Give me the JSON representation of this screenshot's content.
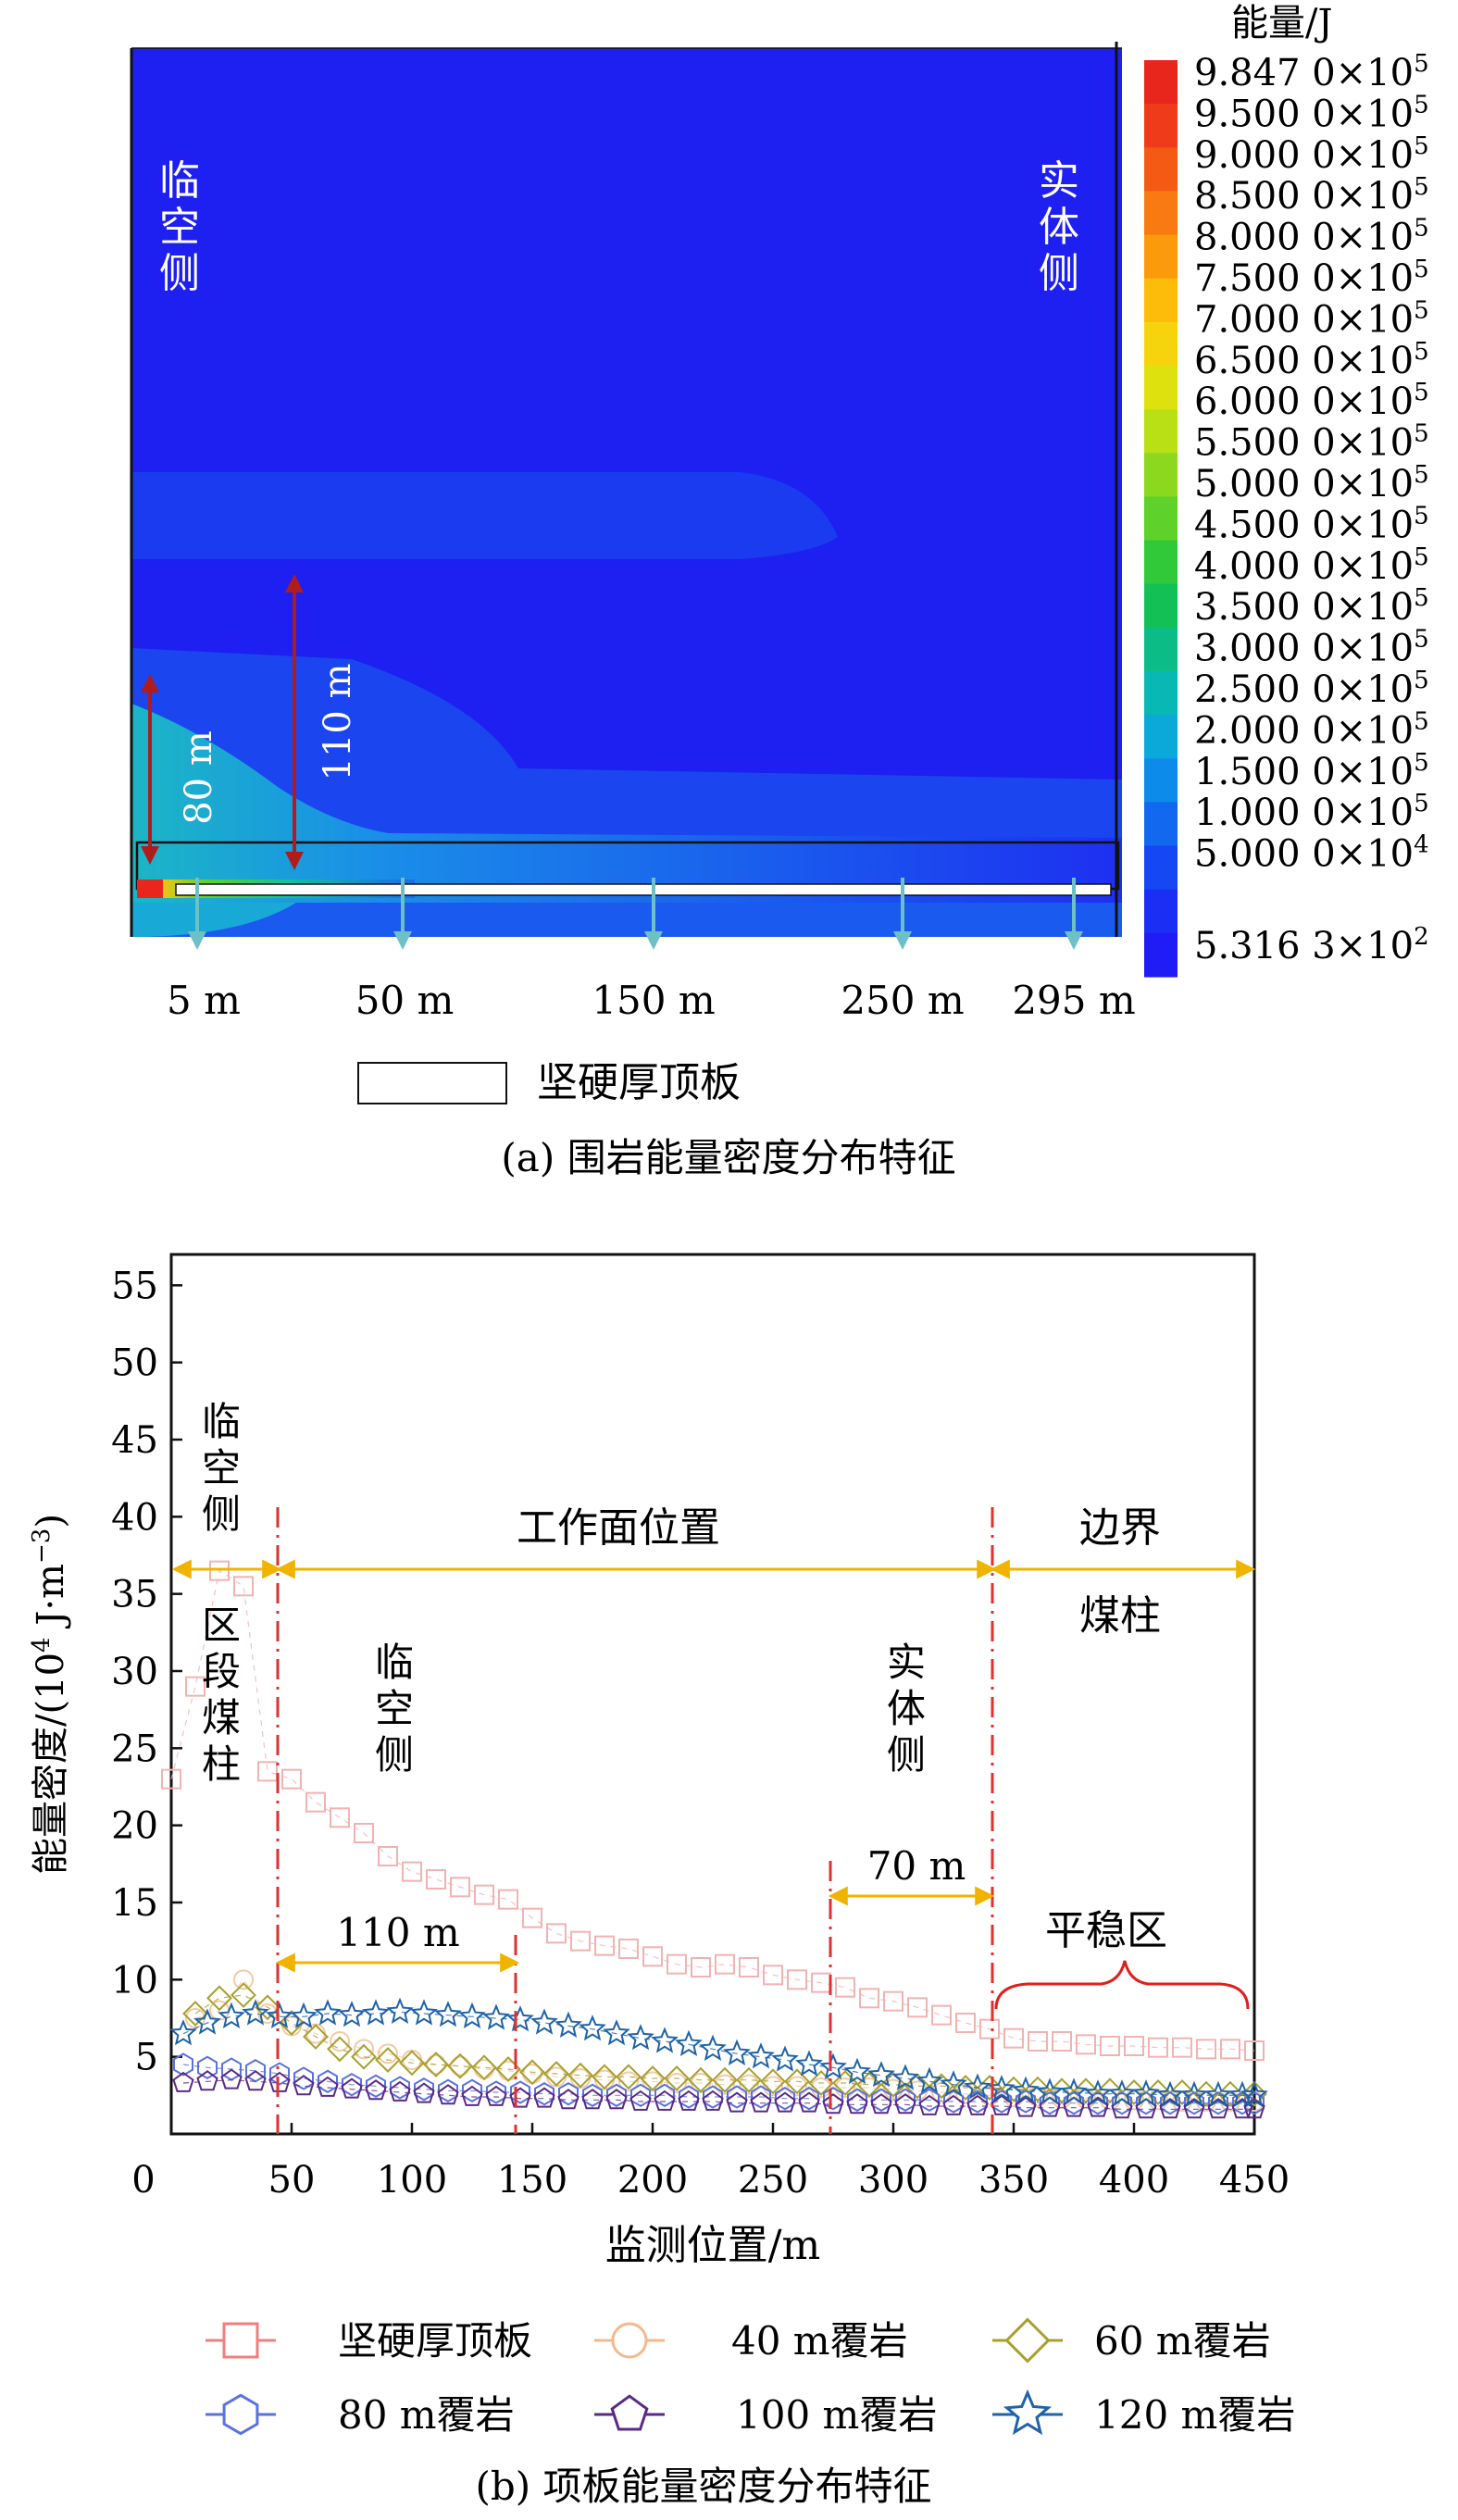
{
  "panel_a": {
    "caption": "(a) 围岩能量密度分布特征",
    "colorbar_title": "能量/J",
    "colorbar_labels": [
      {
        "mantissa": "9.847 0",
        "exp": "5"
      },
      {
        "mantissa": "9.500 0",
        "exp": "5"
      },
      {
        "mantissa": "9.000 0",
        "exp": "5"
      },
      {
        "mantissa": "8.500 0",
        "exp": "5"
      },
      {
        "mantissa": "8.000 0",
        "exp": "5"
      },
      {
        "mantissa": "7.500 0",
        "exp": "5"
      },
      {
        "mantissa": "7.000 0",
        "exp": "5"
      },
      {
        "mantissa": "6.500 0",
        "exp": "5"
      },
      {
        "mantissa": "6.000 0",
        "exp": "5"
      },
      {
        "mantissa": "5.500 0",
        "exp": "5"
      },
      {
        "mantissa": "5.000 0",
        "exp": "5"
      },
      {
        "mantissa": "4.500 0",
        "exp": "5"
      },
      {
        "mantissa": "4.000 0",
        "exp": "5"
      },
      {
        "mantissa": "3.500 0",
        "exp": "5"
      },
      {
        "mantissa": "3.000 0",
        "exp": "5"
      },
      {
        "mantissa": "2.500 0",
        "exp": "5"
      },
      {
        "mantissa": "2.000 0",
        "exp": "5"
      },
      {
        "mantissa": "1.500 0",
        "exp": "5"
      },
      {
        "mantissa": "1.000 0",
        "exp": "5"
      },
      {
        "mantissa": "5.000 0",
        "exp": "4"
      },
      {
        "mantissa": "5.316 3",
        "exp": "2"
      }
    ],
    "colorbar_colors": [
      "#e8261c",
      "#ef3b1a",
      "#f45a14",
      "#f87a10",
      "#fb9b0c",
      "#fdbb0a",
      "#f5d40d",
      "#dfe10f",
      "#b8e015",
      "#8cd81e",
      "#5ed12a",
      "#31c83a",
      "#12c055",
      "#0cbc86",
      "#08b8b4",
      "#0aa9da",
      "#0d8bea",
      "#1269ef",
      "#1548f2",
      "#1a2ef4",
      "#1f1cf5"
    ],
    "field_bg": "#1e1ff1",
    "left_label": "临空侧",
    "right_label": "实体侧",
    "arrow_80": "80 m",
    "arrow_110": "110 m",
    "bottom_positions": [
      "5 m",
      "50 m",
      "150 m",
      "250 m",
      "295 m"
    ],
    "legend_label": "坚硬厚顶板"
  },
  "panel_b": {
    "caption": "(b) 项板能量密度分布特征",
    "xlabel": "监测位置/m",
    "ylabel_main": "能量密度/(10",
    "ylabel_exp": "4",
    "ylabel_tail": " J·m",
    "ylabel_exp2": "−3",
    "ylabel_close": ")",
    "x_ticks": [
      "0",
      "50",
      "100",
      "150",
      "200",
      "250",
      "300",
      "350",
      "400",
      "450"
    ],
    "y_ticks": [
      "5",
      "10",
      "15",
      "20",
      "25",
      "30",
      "35",
      "40",
      "45",
      "50",
      "55"
    ],
    "annotations": {
      "lin_kong_ce_top": "临空侧",
      "qu_duan_mei_zhu": "区段煤柱",
      "gong_zuo_mian": "工作面位置",
      "bian_jie": "边界",
      "mei_zhu": "煤柱",
      "lin_kong_ce_mid": "临空侧",
      "shi_ti_ce": "实体侧",
      "d110": "110 m",
      "d70": "70 m",
      "ping_wen_qu": "平稳区"
    },
    "legend": [
      {
        "label": "坚硬厚顶板",
        "color": "#ef7f7f",
        "marker": "square"
      },
      {
        "label": "40 m覆岩",
        "color": "#f4b88c",
        "marker": "circle"
      },
      {
        "label": "60 m覆岩",
        "color": "#a8a02c",
        "marker": "diamond"
      },
      {
        "label": "80 m覆岩",
        "color": "#5a72e0",
        "marker": "hexagon"
      },
      {
        "label": "100 m覆岩",
        "color": "#5a2a86",
        "marker": "pentagon"
      },
      {
        "label": "120 m覆岩",
        "color": "#1f63a8",
        "marker": "star"
      }
    ]
  },
  "chart_data": {
    "type": "scatter",
    "xlabel": "监测位置/m",
    "ylabel": "能量密度/(10^4 J·m^-3)",
    "xlim": [
      0,
      450
    ],
    "ylim": [
      0,
      57
    ],
    "grid": false,
    "legend_position": "bottom",
    "series": [
      {
        "name": "坚硬厚顶板",
        "x": [
          0,
          10,
          20,
          30,
          40,
          50,
          60,
          70,
          80,
          90,
          100,
          110,
          120,
          130,
          140,
          150,
          160,
          170,
          180,
          190,
          200,
          210,
          220,
          230,
          240,
          250,
          260,
          270,
          280,
          290,
          300,
          310,
          320,
          330,
          340,
          350,
          360,
          370,
          380,
          390,
          400,
          410,
          420,
          430,
          440,
          450
        ],
        "y": [
          23,
          29,
          36.5,
          35.5,
          23.5,
          23,
          21.5,
          20.5,
          19.5,
          18,
          17,
          16.5,
          16,
          15.5,
          15.2,
          14,
          13,
          12.5,
          12.2,
          12,
          11.5,
          11,
          10.8,
          11,
          10.8,
          10.3,
          10,
          9.8,
          9.5,
          8.8,
          8.6,
          8.2,
          7.7,
          7.2,
          6.8,
          6.2,
          6,
          6,
          5.8,
          5.7,
          5.7,
          5.6,
          5.6,
          5.5,
          5.5,
          5.4
        ]
      },
      {
        "name": "40 m覆岩",
        "x": [
          10,
          20,
          30,
          40,
          50,
          60,
          70,
          80,
          90,
          100,
          110,
          120,
          130,
          140,
          150,
          160,
          170,
          180,
          190,
          200,
          210,
          220,
          230,
          240,
          250,
          260,
          270,
          280,
          290,
          300,
          310,
          320,
          330,
          340,
          350,
          360,
          370,
          380,
          390,
          400,
          410,
          420,
          430,
          440,
          450
        ],
        "y": [
          7.5,
          8,
          10,
          7.8,
          7,
          6.5,
          6,
          5.5,
          5.2,
          4.8,
          4.5,
          4.4,
          4.2,
          4.1,
          3.9,
          3.7,
          3.6,
          3.5,
          3.4,
          3.4,
          3.3,
          3.3,
          3.2,
          3.2,
          3.1,
          3.1,
          3,
          3,
          3,
          2.9,
          2.8,
          2.7,
          2.6,
          2.5,
          2.4,
          2.4,
          2.3,
          2.3,
          2.2,
          2.2,
          2.2,
          2.1,
          2.1,
          2.1,
          2.1
        ]
      },
      {
        "name": "60 m覆岩",
        "x": [
          10,
          20,
          30,
          40,
          50,
          60,
          70,
          80,
          90,
          100,
          110,
          120,
          130,
          140,
          150,
          160,
          170,
          180,
          190,
          200,
          210,
          220,
          230,
          240,
          250,
          260,
          270,
          280,
          290,
          300,
          310,
          320,
          330,
          340,
          350,
          360,
          370,
          380,
          390,
          400,
          410,
          420,
          430,
          440,
          450
        ],
        "y": [
          7.8,
          8.8,
          9,
          8.2,
          7.2,
          6.3,
          5.5,
          5,
          4.8,
          4.6,
          4.5,
          4.4,
          4.3,
          4.2,
          4,
          3.9,
          3.8,
          3.7,
          3.7,
          3.6,
          3.6,
          3.5,
          3.5,
          3.5,
          3.4,
          3.4,
          3.3,
          3.3,
          3.2,
          3.2,
          3.1,
          3.1,
          3,
          3,
          2.9,
          2.9,
          2.8,
          2.8,
          2.8,
          2.7,
          2.7,
          2.7,
          2.6,
          2.6,
          2.6
        ]
      },
      {
        "name": "80 m覆岩",
        "x": [
          5,
          15,
          25,
          35,
          45,
          55,
          65,
          75,
          85,
          95,
          105,
          115,
          125,
          135,
          145,
          155,
          165,
          175,
          185,
          195,
          205,
          215,
          225,
          235,
          245,
          255,
          265,
          275,
          285,
          295,
          305,
          315,
          325,
          335,
          345,
          355,
          365,
          375,
          385,
          395,
          405,
          415,
          425,
          435,
          445,
          450
        ],
        "y": [
          4.5,
          4.3,
          4.2,
          4.1,
          3.9,
          3.6,
          3.4,
          3.2,
          3.1,
          3,
          2.9,
          2.8,
          2.8,
          2.7,
          2.7,
          2.6,
          2.6,
          2.5,
          2.5,
          2.5,
          2.5,
          2.4,
          2.4,
          2.4,
          2.4,
          2.3,
          2.3,
          2.3,
          2.2,
          2.2,
          2.2,
          2.2,
          2.1,
          2.1,
          2.1,
          2.1,
          2,
          2,
          2,
          2,
          2,
          2,
          2,
          2,
          2,
          2
        ]
      },
      {
        "name": "100 m覆岩",
        "x": [
          5,
          15,
          25,
          35,
          45,
          55,
          65,
          75,
          85,
          95,
          105,
          115,
          125,
          135,
          145,
          155,
          165,
          175,
          185,
          195,
          205,
          215,
          225,
          235,
          245,
          255,
          265,
          275,
          285,
          295,
          305,
          315,
          325,
          335,
          345,
          355,
          365,
          375,
          385,
          395,
          405,
          415,
          425,
          435,
          445,
          450
        ],
        "y": [
          3.3,
          3.4,
          3.5,
          3.4,
          3.3,
          3.1,
          3,
          2.9,
          2.8,
          2.7,
          2.6,
          2.5,
          2.4,
          2.4,
          2.3,
          2.3,
          2.2,
          2.2,
          2.2,
          2.1,
          2.1,
          2.1,
          2.1,
          2,
          2,
          2,
          2,
          1.9,
          1.9,
          1.9,
          1.9,
          1.8,
          1.8,
          1.8,
          1.8,
          1.7,
          1.7,
          1.7,
          1.7,
          1.6,
          1.6,
          1.6,
          1.6,
          1.6,
          1.6,
          1.6
        ]
      },
      {
        "name": "120 m覆岩",
        "x": [
          5,
          15,
          25,
          35,
          45,
          55,
          65,
          75,
          85,
          95,
          105,
          115,
          125,
          135,
          145,
          155,
          165,
          175,
          185,
          195,
          205,
          215,
          225,
          235,
          245,
          255,
          265,
          275,
          285,
          295,
          305,
          315,
          325,
          335,
          345,
          355,
          365,
          375,
          385,
          395,
          405,
          415,
          425,
          435,
          445,
          450
        ],
        "y": [
          6.5,
          7.2,
          7.6,
          7.8,
          7.6,
          7.6,
          7.8,
          7.7,
          7.8,
          7.9,
          7.8,
          7.7,
          7.6,
          7.5,
          7.4,
          7.2,
          7,
          6.8,
          6.5,
          6.2,
          6,
          5.8,
          5.5,
          5.2,
          5,
          4.8,
          4.5,
          4.3,
          4,
          3.8,
          3.6,
          3.4,
          3.2,
          3,
          2.9,
          2.8,
          2.7,
          2.7,
          2.6,
          2.6,
          2.6,
          2.5,
          2.5,
          2.5,
          2.5,
          2.5
        ]
      }
    ]
  }
}
